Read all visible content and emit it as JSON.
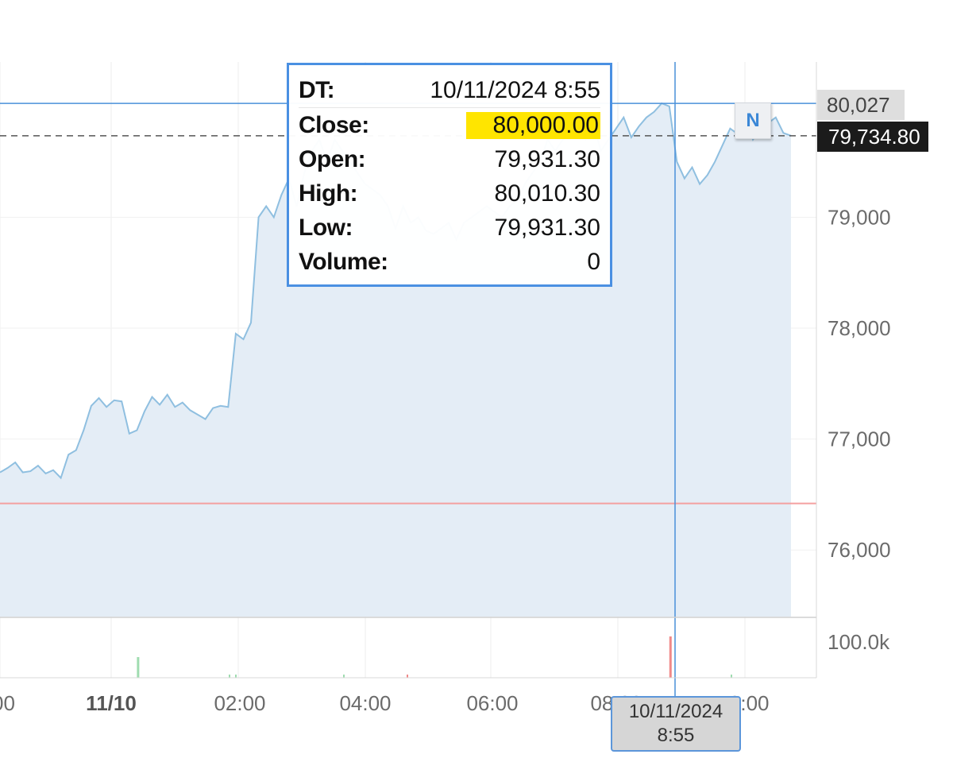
{
  "chart_data": {
    "type": "area",
    "x_ticks": [
      "00",
      "11/10",
      "02:00",
      "04:00",
      "06:00",
      "08:00",
      "10:00"
    ],
    "y_ticks": [
      "79,000",
      "78,000",
      "77,000",
      "76,000"
    ],
    "ylim": [
      75400,
      80400
    ],
    "volume_axis_label": "100.0k",
    "reference_line": 76420,
    "last_price": "79,734.80",
    "last_price_value": 79734.8,
    "hover_price": "80,027",
    "hover_price_value": 80027,
    "series": [
      {
        "values": [
          76700,
          76740,
          76790,
          76700,
          76710,
          76760,
          76690,
          76720,
          76650,
          76860,
          76900,
          77080,
          77300,
          77370,
          77290,
          77350,
          77340,
          77050,
          77080,
          77250,
          77380,
          77310,
          77400,
          77290,
          77330,
          77260,
          77220,
          77180,
          77280,
          77300,
          77290,
          77950,
          77900,
          78050,
          79000,
          79100,
          79000,
          79200,
          79350,
          79100,
          79400,
          79600,
          79700,
          79500,
          79700,
          79600,
          79500,
          79400,
          79300,
          79250,
          79200,
          79100,
          78900,
          79100,
          78950,
          79000,
          78880,
          78850,
          78900,
          78950,
          78800,
          78950,
          79000,
          79050,
          79100,
          79050,
          79000,
          79100,
          79150,
          79300,
          79400,
          79500,
          79700,
          79600,
          79700,
          79750,
          79800,
          79700,
          79850,
          79600,
          79700,
          79800,
          79900,
          79720,
          79820,
          79900,
          79950,
          80027,
          80000,
          79500,
          79350,
          79450,
          79300,
          79380,
          79500,
          79650,
          79800,
          79750,
          79900,
          79700,
          79800,
          79850,
          79900,
          79760,
          79735
        ]
      }
    ],
    "volume": [
      {
        "index": 18,
        "color": "green",
        "size": "small"
      },
      {
        "index": 88,
        "color": "red",
        "size": "large"
      }
    ],
    "tooltip": {
      "rows": [
        {
          "label": "DT:",
          "value": "10/11/2024 8:55"
        },
        {
          "label": "Close:",
          "value": "80,000.00"
        },
        {
          "label": "Open:",
          "value": "79,931.30"
        },
        {
          "label": "High:",
          "value": "80,010.30"
        },
        {
          "label": "Low:",
          "value": "79,931.30"
        },
        {
          "label": "Volume:",
          "value": "0"
        }
      ]
    },
    "news_marker": "N",
    "cursor_time": [
      "10/11/2024",
      "8:55"
    ],
    "colors": {
      "line": "#8fbfe0",
      "area": "#e4edf6",
      "crosshair": "#4a90d9",
      "reference": "#f4a0a0",
      "highlight": "#ffe500"
    }
  }
}
